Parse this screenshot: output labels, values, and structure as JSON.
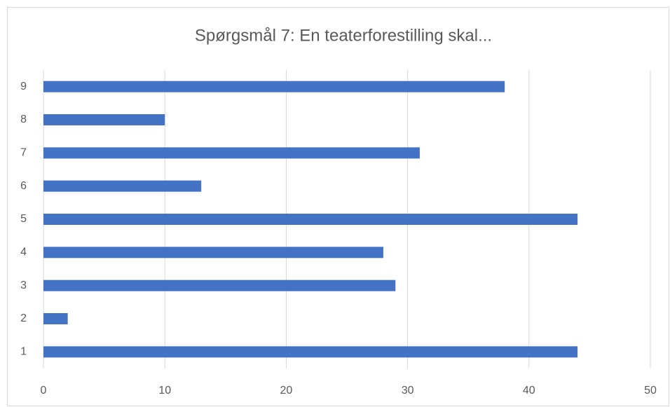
{
  "chart_data": {
    "type": "bar",
    "orientation": "horizontal",
    "title": "Spørgsmål 7: En teaterforestilling skal...",
    "categories": [
      "1",
      "2",
      "3",
      "4",
      "5",
      "6",
      "7",
      "8",
      "9"
    ],
    "values": [
      44,
      2,
      29,
      28,
      44,
      13,
      31,
      10,
      38
    ],
    "color": "#4472c4",
    "xlim": [
      0,
      50
    ],
    "xticks": [
      0,
      10,
      20,
      30,
      40,
      50
    ],
    "grid": true
  }
}
